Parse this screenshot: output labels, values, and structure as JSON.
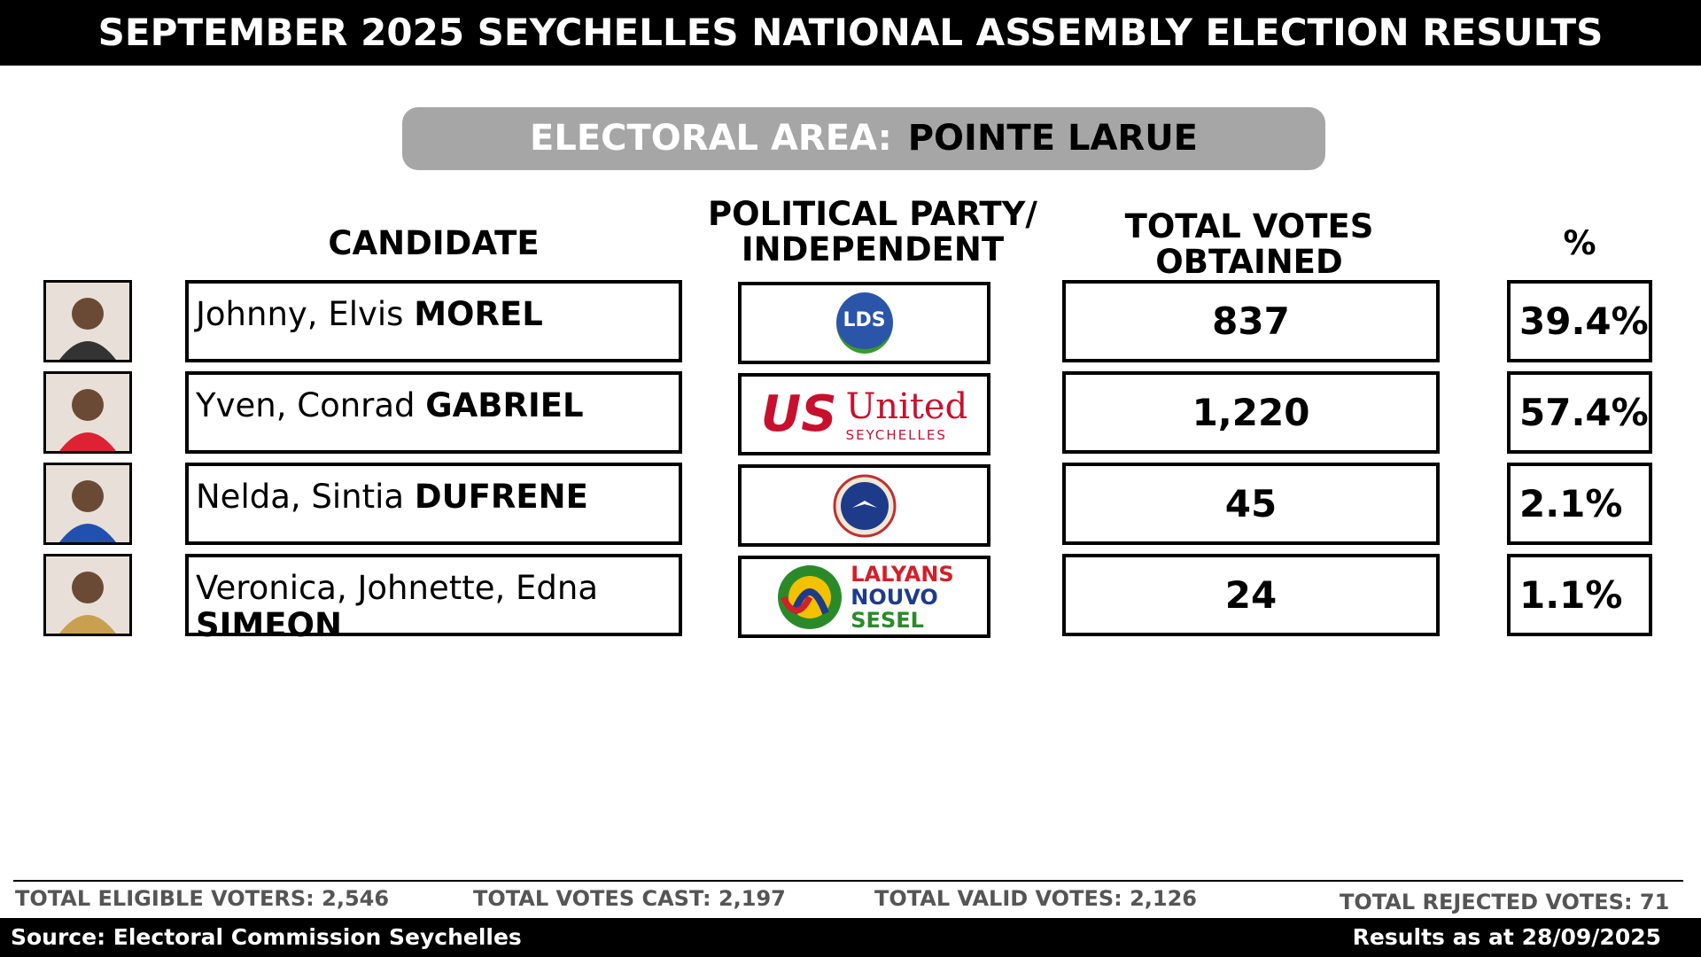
{
  "header": {
    "title": "SEPTEMBER 2025 SEYCHELLES NATIONAL ASSEMBLY ELECTION RESULTS"
  },
  "area": {
    "label": "ELECTORAL AREA:",
    "name": "POINTE LARUE"
  },
  "columns": [
    "CANDIDATE",
    "POLITICAL PARTY/ INDEPENDENT",
    "TOTAL VOTES OBTAINED",
    "%"
  ],
  "rows": [
    {
      "given": "Johnny, Elvis",
      "surname": "MOREL",
      "party_logo": [
        "LDS"
      ],
      "votes": "837",
      "percent": "39.4%"
    },
    {
      "given": "Yven, Conrad",
      "surname": "GABRIEL",
      "party_logo": [
        "US",
        "United",
        "SEYCHELLES"
      ],
      "votes": "1,220",
      "percent": "57.4%"
    },
    {
      "given": "Nelda, Sintia",
      "surname": "DUFRENE",
      "party_logo": [],
      "votes": "45",
      "percent": "2.1%"
    },
    {
      "given": "Veronica, Johnette, Edna",
      "surname": "SIMEON",
      "party_logo": [
        "LALYANS",
        "NOUVO",
        "SESEL"
      ],
      "votes": "24",
      "percent": "1.1%"
    }
  ],
  "footer": {
    "stats": [
      "TOTAL ELIGIBLE VOTERS: 2,546",
      "TOTAL VOTES CAST: 2,197",
      "TOTAL VALID VOTES: 2,126",
      "TOTAL REJECTED VOTES: 71"
    ],
    "source": "Source: Electoral Commission Seychelles",
    "as_at": "Results as at 28/09/2025"
  }
}
